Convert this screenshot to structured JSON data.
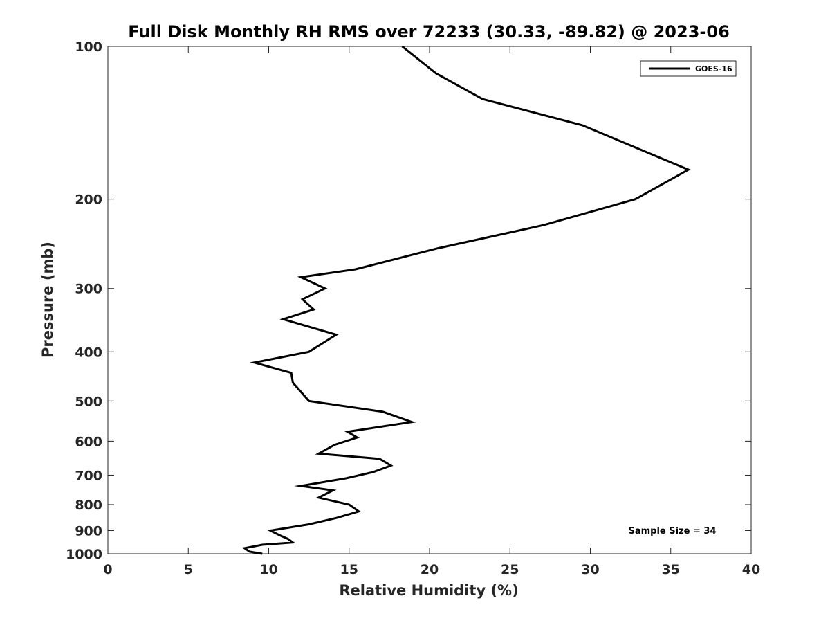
{
  "chart_data": {
    "type": "line",
    "title": "Full Disk Monthly RH RMS over 72233 (30.33, -89.82) @ 2023-06",
    "xlabel": "Relative Humidity (%)",
    "ylabel": "Pressure (mb)",
    "xlim": [
      0,
      40
    ],
    "ylim": [
      100,
      1000
    ],
    "y_scale": "log",
    "y_reversed": true,
    "x_ticks": [
      0,
      5,
      10,
      15,
      20,
      25,
      30,
      35,
      40
    ],
    "x_tick_labels": [
      "0",
      "5",
      "10",
      "15",
      "20",
      "25",
      "30",
      "35",
      "40"
    ],
    "y_ticks": [
      100,
      200,
      300,
      400,
      500,
      600,
      700,
      800,
      900,
      1000
    ],
    "y_tick_labels": [
      "100",
      "200",
      "300",
      "400",
      "500",
      "600",
      "700",
      "800",
      "900",
      "1000"
    ],
    "grid": false,
    "legend_position": "top-right",
    "annotation": "Sample Size = 34",
    "annotation_position": "bottom-right",
    "series": [
      {
        "name": "GOES-16",
        "color": "#000000",
        "x": [
          18.3,
          20.4,
          23.3,
          29.5,
          36.1,
          32.8,
          27.1,
          20.5,
          15.4,
          12.0,
          13.5,
          12.1,
          12.8,
          10.9,
          14.2,
          12.5,
          9.1,
          11.4,
          11.5,
          12.5,
          17.1,
          18.9,
          14.9,
          15.5,
          14.1,
          13.1,
          16.9,
          17.6,
          16.5,
          14.8,
          12.0,
          14.0,
          13.1,
          15.0,
          15.6,
          14.2,
          12.5,
          10.1,
          10.7,
          11.2,
          11.5,
          9.6,
          8.5,
          8.8,
          9.6
        ],
        "y": [
          100,
          113,
          127,
          143,
          175,
          200,
          225,
          250,
          275,
          285,
          300,
          315,
          330,
          345,
          370,
          400,
          420,
          440,
          460,
          500,
          525,
          550,
          575,
          590,
          610,
          635,
          650,
          670,
          690,
          710,
          735,
          750,
          775,
          800,
          825,
          850,
          875,
          900,
          920,
          935,
          950,
          960,
          975,
          990,
          1000
        ]
      }
    ]
  }
}
